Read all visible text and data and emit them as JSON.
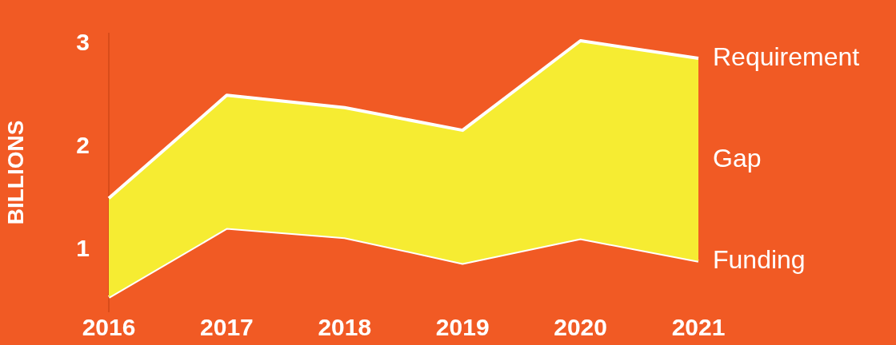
{
  "chart_data": {
    "type": "area",
    "ylabel": "BILLIONS",
    "categories": [
      "2016",
      "2017",
      "2018",
      "2019",
      "2020",
      "2021"
    ],
    "series": [
      {
        "name": "Requirement",
        "color": "#f6ec32",
        "values": [
          1.5,
          2.5,
          2.38,
          2.16,
          3.03,
          2.86
        ]
      },
      {
        "name": "Funding",
        "type": "line",
        "color": "#ffffff",
        "values": [
          0.54,
          1.21,
          1.12,
          0.87,
          1.11,
          0.89
        ]
      }
    ],
    "ylim": [
      0.4,
      3.1
    ],
    "yticks": [
      1,
      2,
      3
    ],
    "grid": false,
    "legend": false,
    "annotations": [
      "Gap"
    ]
  }
}
